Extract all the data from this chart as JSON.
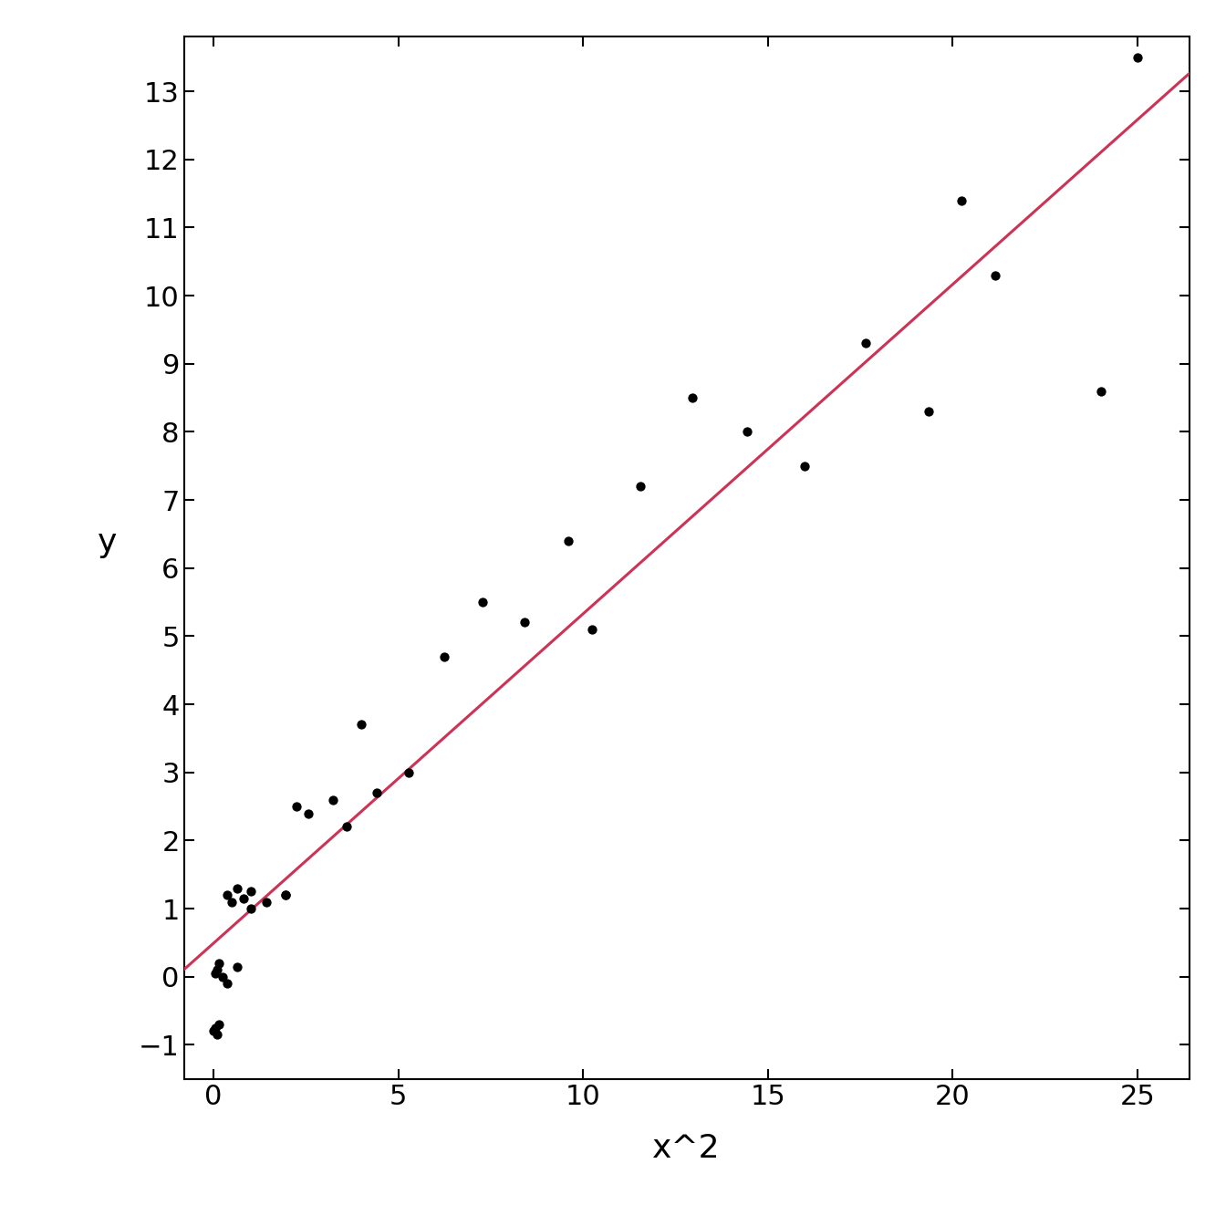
{
  "x2_values": [
    0.04,
    0.09,
    0.16,
    0.25,
    0.36,
    0.64,
    1.0,
    1.44,
    1.96,
    2.25,
    2.56,
    3.24,
    3.61,
    4.0,
    5.29,
    6.25,
    7.29,
    8.41,
    9.61,
    10.24,
    11.56,
    12.96,
    14.44,
    16.0,
    17.64,
    19.36,
    20.25,
    21.16,
    24.01,
    25.0,
    0.01,
    0.04,
    0.09,
    0.16,
    0.36,
    0.49,
    0.64,
    0.81,
    1.0,
    1.96,
    4.41
  ],
  "y_values": [
    0.05,
    0.1,
    0.2,
    0.0,
    -0.1,
    0.15,
    1.0,
    1.1,
    1.2,
    2.5,
    2.4,
    2.6,
    2.2,
    3.7,
    3.0,
    4.7,
    5.5,
    5.2,
    6.4,
    5.1,
    7.2,
    8.5,
    8.0,
    7.5,
    9.3,
    8.3,
    11.4,
    10.3,
    8.6,
    13.5,
    -0.8,
    -0.75,
    -0.85,
    -0.7,
    1.2,
    1.1,
    1.3,
    1.15,
    1.25,
    1.2,
    2.7
  ],
  "line_color": "#cc3355",
  "point_color": "#000000",
  "point_size": 55,
  "xlabel": "x^2",
  "ylabel": "y",
  "xlim": [
    -0.8,
    26.4
  ],
  "ylim": [
    -1.5,
    13.8
  ],
  "xticks": [
    0,
    5,
    10,
    15,
    20,
    25
  ],
  "yticks": [
    -1,
    0,
    1,
    2,
    3,
    4,
    5,
    6,
    7,
    8,
    9,
    10,
    11,
    12,
    13
  ],
  "bg_color": "#ffffff"
}
